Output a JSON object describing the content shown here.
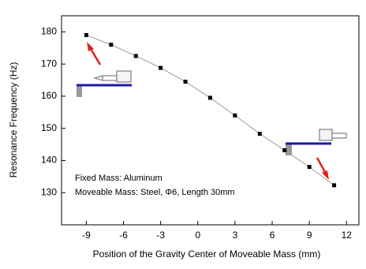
{
  "chart_data": {
    "type": "line",
    "x_label": "Position of the Gravity Center of Moveable Mass (mm)",
    "y_label": "Resonance Frequency (Hz)",
    "annotations": [
      "Fixed Mass: Aluminum",
      "Moveable Mass: Steel, Φ6, Length 30mm"
    ],
    "x": [
      -9,
      -7,
      -5,
      -3,
      -1,
      1,
      3,
      5,
      7,
      9,
      11
    ],
    "series": [
      {
        "color": "#999999",
        "marker_color": "#000000",
        "values": [
          179,
          176,
          172.5,
          168.8,
          164.5,
          159.5,
          154,
          148.3,
          143.2,
          138,
          132.3
        ]
      }
    ],
    "xlim": [
      -11,
      13
    ],
    "xticks": [
      -9,
      -6,
      -3,
      0,
      3,
      6,
      9,
      12
    ],
    "ylim": [
      120,
      185
    ],
    "yticks": [
      130,
      140,
      150,
      160,
      170,
      180
    ]
  }
}
